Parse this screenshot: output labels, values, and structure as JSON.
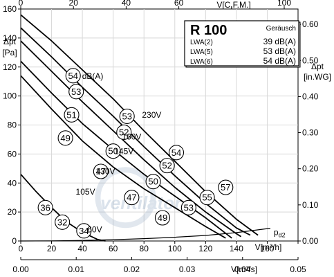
{
  "chart_data": {
    "type": "line",
    "title": "R 100",
    "legend": {
      "header": "Geräusch",
      "rows": [
        {
          "label": "LWA(2)",
          "value": "39 dB(A)"
        },
        {
          "label": "LWA(5)",
          "value": "53 dB(A)"
        },
        {
          "label": "LWA(6)",
          "value": "54 dB(A)"
        }
      ]
    },
    "axes": {
      "x_bottom": {
        "label": "V[m³/h]",
        "min": 0,
        "max": 180,
        "ticks": [
          0,
          20,
          40,
          60,
          80,
          100,
          120,
          140,
          160,
          180
        ]
      },
      "x_bottom2": {
        "label": "V[m³/s]",
        "min": 0,
        "max": 0.05,
        "ticks": [
          "0.00",
          "0.01",
          "0.02",
          "0.03",
          "0.04",
          "0.05"
        ]
      },
      "x_top": {
        "label": "V[C.F.M.]",
        "min": 0,
        "max": 100,
        "ticks": [
          0,
          20,
          40,
          60,
          80,
          100
        ]
      },
      "y_left": {
        "label_main": "Δpt",
        "label_unit": "[Pa]",
        "min": 0,
        "max": 160,
        "ticks": [
          0,
          20,
          40,
          60,
          80,
          100,
          120,
          140,
          160
        ]
      },
      "y_right": {
        "label_main": "Δpt",
        "label_unit": "[in.WG]",
        "min": 0,
        "max": 0.6424,
        "ticks": [
          "0.00",
          "0.10",
          "0.20",
          "0.30",
          "0.40",
          "0.50",
          "0.60"
        ]
      }
    },
    "series": [
      {
        "name": "230V",
        "x": [
          0,
          20,
          40,
          60,
          80,
          100,
          120,
          140,
          154
        ],
        "y": [
          156,
          138,
          118,
          98,
          76,
          55,
          34,
          15,
          4
        ]
      },
      {
        "name": "160V",
        "x": [
          0,
          20,
          40,
          60,
          80,
          100,
          120,
          140,
          149
        ],
        "y": [
          147,
          127,
          106,
          86,
          65,
          45,
          26,
          9,
          4
        ]
      },
      {
        "name": "145V",
        "x": [
          0,
          20,
          40,
          60,
          80,
          100,
          120,
          140,
          143
        ],
        "y": [
          138,
          117,
          96,
          76,
          56,
          37,
          20,
          5,
          3
        ]
      },
      {
        "name": "130V",
        "x": [
          0,
          20,
          40,
          60,
          80,
          100,
          120,
          137
        ],
        "y": [
          124,
          102,
          81,
          63,
          46,
          31,
          16,
          2
        ]
      },
      {
        "name": "105V",
        "x": [
          0,
          20,
          40,
          60,
          80,
          100,
          120,
          133
        ],
        "y": [
          114,
          91,
          69,
          51,
          36,
          23,
          10,
          2
        ]
      },
      {
        "name": "60V",
        "x": [
          0,
          10,
          20,
          30,
          40,
          50,
          55
        ],
        "y": [
          46,
          34,
          23,
          13,
          6,
          1,
          0
        ]
      },
      {
        "name": "pd2",
        "x": [
          0,
          20,
          40,
          60,
          80,
          100,
          120,
          140,
          162
        ],
        "y": [
          0,
          0.1,
          0.4,
          0.9,
          1.6,
          2.6,
          3.8,
          5.8,
          8.8
        ]
      }
    ],
    "curve_labels": [
      {
        "text": "230V",
        "x": 85,
        "y": 85
      },
      {
        "text": "160V",
        "x": 72,
        "y": 70
      },
      {
        "text": "145V",
        "x": 67,
        "y": 60
      },
      {
        "text": "130V",
        "x": 55,
        "y": 46
      },
      {
        "text": "105V",
        "x": 42,
        "y": 32
      },
      {
        "text": "60V",
        "x": 48,
        "y": 6
      },
      {
        "text": "pd2",
        "x": 168,
        "y": 4
      }
    ],
    "sound_markers": [
      {
        "text": "54",
        "x": 34,
        "y": 114
      },
      {
        "text": "53",
        "x": 36,
        "y": 103
      },
      {
        "text": "51",
        "x": 33,
        "y": 87
      },
      {
        "text": "49",
        "x": 29,
        "y": 71
      },
      {
        "text": "47",
        "x": 52,
        "y": 48
      },
      {
        "text": "36",
        "x": 16,
        "y": 23
      },
      {
        "text": "32",
        "x": 27,
        "y": 13
      },
      {
        "text": "34",
        "x": 41,
        "y": 7
      },
      {
        "text": "53",
        "x": 69,
        "y": 86
      },
      {
        "text": "52",
        "x": 67,
        "y": 75
      },
      {
        "text": "50",
        "x": 60,
        "y": 62
      },
      {
        "text": "47",
        "x": 72,
        "y": 30
      },
      {
        "text": "54",
        "x": 101,
        "y": 61
      },
      {
        "text": "52",
        "x": 95,
        "y": 52
      },
      {
        "text": "50",
        "x": 86,
        "y": 41
      },
      {
        "text": "49",
        "x": 92,
        "y": 16
      },
      {
        "text": "57",
        "x": 133,
        "y": 37
      },
      {
        "text": "55",
        "x": 121,
        "y": 30
      },
      {
        "text": "53",
        "x": 109,
        "y": 23
      }
    ],
    "marker_suffix": "dB(A)",
    "watermark": "ventilator"
  }
}
